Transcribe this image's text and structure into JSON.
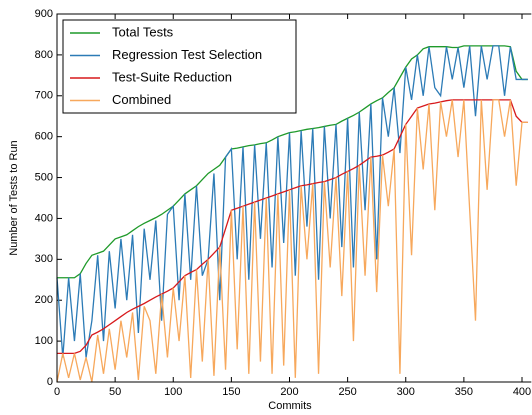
{
  "chart_data": {
    "type": "line",
    "xlabel": "Commits",
    "ylabel": "Number of Tests to Run",
    "xlim": [
      0,
      408
    ],
    "xticks": [
      0,
      50,
      100,
      150,
      200,
      250,
      300,
      350,
      400
    ],
    "ylim": [
      0,
      900
    ],
    "yticks": [
      0,
      100,
      200,
      300,
      400,
      500,
      600,
      700,
      800,
      900
    ],
    "legend": "upper left",
    "x": [
      0,
      5,
      10,
      15,
      20,
      25,
      30,
      35,
      40,
      45,
      50,
      55,
      60,
      65,
      70,
      75,
      80,
      85,
      90,
      95,
      100,
      105,
      110,
      115,
      120,
      125,
      130,
      135,
      140,
      145,
      150,
      155,
      160,
      165,
      170,
      175,
      180,
      185,
      190,
      195,
      200,
      205,
      210,
      215,
      220,
      225,
      230,
      235,
      240,
      245,
      250,
      255,
      260,
      265,
      270,
      275,
      280,
      285,
      290,
      295,
      300,
      305,
      310,
      315,
      320,
      325,
      330,
      335,
      340,
      345,
      350,
      355,
      360,
      365,
      370,
      375,
      380,
      385,
      390,
      395,
      400,
      405
    ],
    "series": [
      {
        "name": "Total Tests",
        "color": "#1f9a2a",
        "values": [
          255,
          255,
          255,
          255,
          265,
          290,
          310,
          315,
          320,
          335,
          350,
          355,
          360,
          370,
          380,
          388,
          395,
          402,
          410,
          420,
          430,
          445,
          460,
          470,
          480,
          495,
          510,
          520,
          530,
          550,
          570,
          572,
          575,
          578,
          580,
          583,
          585,
          592,
          600,
          605,
          610,
          612,
          615,
          618,
          620,
          622,
          625,
          628,
          630,
          638,
          645,
          652,
          660,
          670,
          680,
          688,
          695,
          708,
          720,
          745,
          770,
          790,
          800,
          815,
          820,
          820,
          820,
          820,
          818,
          818,
          822,
          822,
          822,
          822,
          822,
          822,
          822,
          822,
          820,
          760,
          740,
          740
        ]
      },
      {
        "name": "Regression Test Selection",
        "color": "#2c7bb6",
        "values": [
          255,
          60,
          255,
          100,
          265,
          60,
          150,
          310,
          100,
          320,
          180,
          350,
          200,
          360,
          120,
          375,
          250,
          395,
          150,
          410,
          430,
          200,
          460,
          250,
          480,
          260,
          300,
          510,
          200,
          550,
          570,
          300,
          575,
          250,
          580,
          350,
          585,
          280,
          600,
          340,
          610,
          260,
          615,
          380,
          620,
          250,
          625,
          400,
          630,
          330,
          645,
          280,
          660,
          420,
          680,
          300,
          695,
          600,
          720,
          560,
          770,
          690,
          800,
          700,
          820,
          720,
          700,
          820,
          740,
          818,
          720,
          822,
          650,
          822,
          740,
          822,
          822,
          700,
          820,
          740,
          740,
          740
        ]
      },
      {
        "name": "Test-Suite Reduction",
        "color": "#d7191c",
        "values": [
          70,
          70,
          70,
          70,
          75,
          90,
          115,
          122,
          130,
          140,
          150,
          160,
          170,
          178,
          185,
          192,
          200,
          208,
          215,
          222,
          230,
          245,
          260,
          268,
          275,
          288,
          300,
          315,
          330,
          375,
          420,
          425,
          430,
          435,
          440,
          445,
          450,
          455,
          460,
          465,
          470,
          475,
          480,
          482,
          485,
          488,
          490,
          495,
          500,
          508,
          515,
          522,
          530,
          540,
          550,
          552,
          555,
          562,
          570,
          600,
          630,
          650,
          670,
          675,
          680,
          682,
          685,
          688,
          690,
          690,
          690,
          690,
          690,
          690,
          690,
          690,
          690,
          690,
          690,
          650,
          635,
          635
        ]
      },
      {
        "name": "Combined",
        "color": "#f7a85c",
        "values": [
          0,
          70,
          10,
          70,
          5,
          60,
          0,
          115,
          20,
          130,
          30,
          150,
          60,
          170,
          5,
          185,
          150,
          20,
          215,
          60,
          230,
          100,
          260,
          10,
          275,
          50,
          300,
          15,
          330,
          30,
          420,
          80,
          430,
          20,
          440,
          50,
          450,
          20,
          460,
          40,
          470,
          10,
          480,
          300,
          485,
          20,
          490,
          280,
          500,
          210,
          515,
          100,
          530,
          260,
          550,
          220,
          555,
          430,
          570,
          20,
          630,
          310,
          670,
          520,
          680,
          420,
          685,
          600,
          690,
          550,
          690,
          420,
          150,
          690,
          470,
          690,
          690,
          600,
          690,
          480,
          635,
          635
        ]
      }
    ]
  }
}
